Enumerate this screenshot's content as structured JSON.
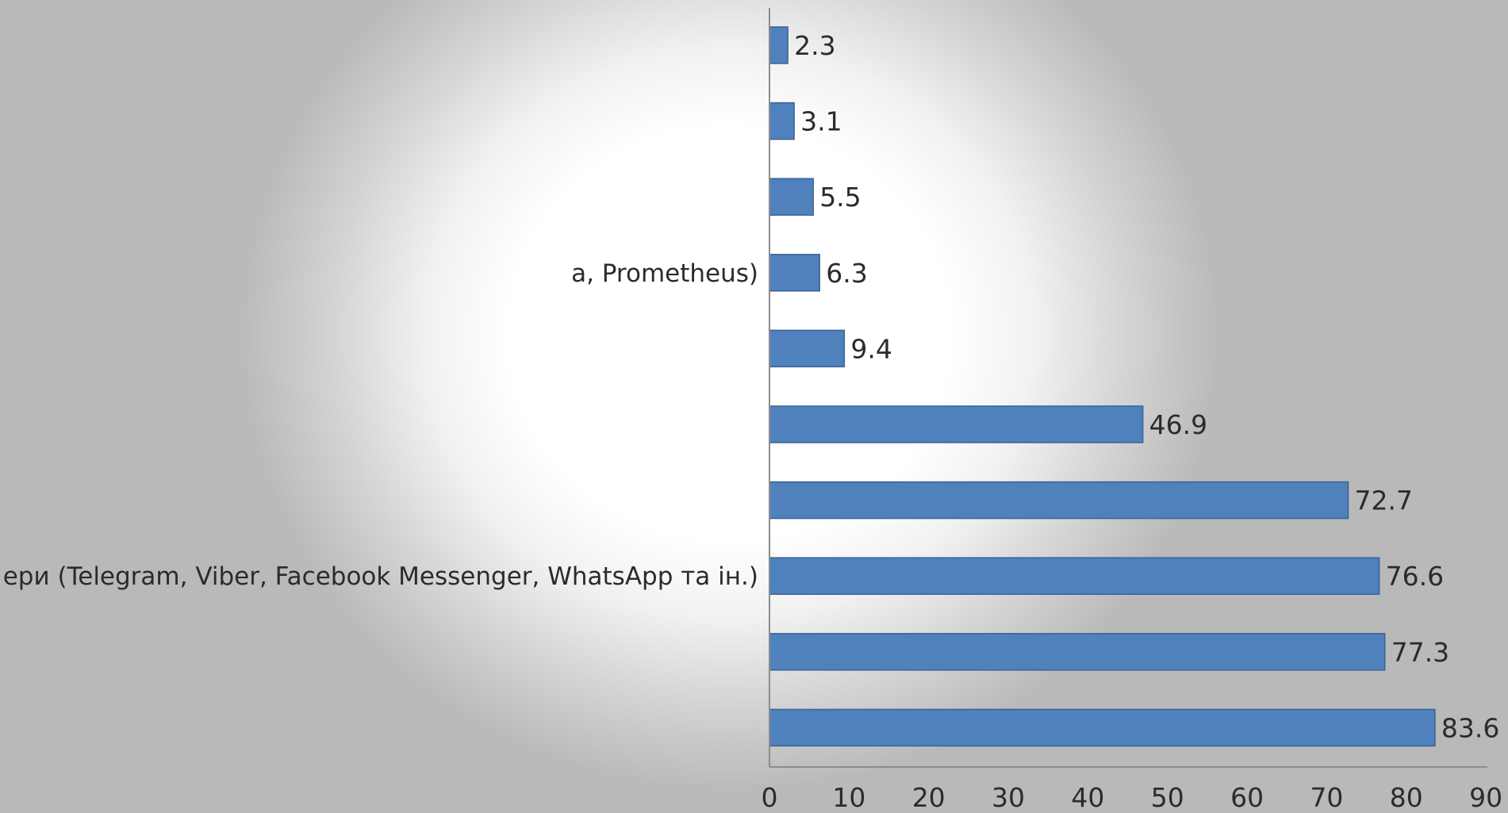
{
  "chart_data": {
    "type": "bar",
    "orientation": "horizontal",
    "categories": [
      "",
      "",
      "",
      "а, Prometheus)",
      "",
      "",
      "",
      "ери (Telegram, Viber, Facebook Messenger, WhatsApp та ін.)",
      "",
      ""
    ],
    "values": [
      2.3,
      3.1,
      5.5,
      6.3,
      9.4,
      46.9,
      72.7,
      76.6,
      77.3,
      83.6
    ],
    "value_labels": [
      "2.3",
      "3.1",
      "5.5",
      "6.3",
      "9.4",
      "46.9",
      "72.7",
      "76.6",
      "77.3",
      "83.6"
    ],
    "xlim": [
      0,
      90
    ],
    "x_ticks": [
      "0",
      "10",
      "20",
      "30",
      "40",
      "50",
      "60",
      "70",
      "80",
      "90"
    ],
    "bar_color": "#4f81bd",
    "grid": false,
    "legend": "none",
    "title": "",
    "xlabel": "",
    "ylabel": ""
  }
}
